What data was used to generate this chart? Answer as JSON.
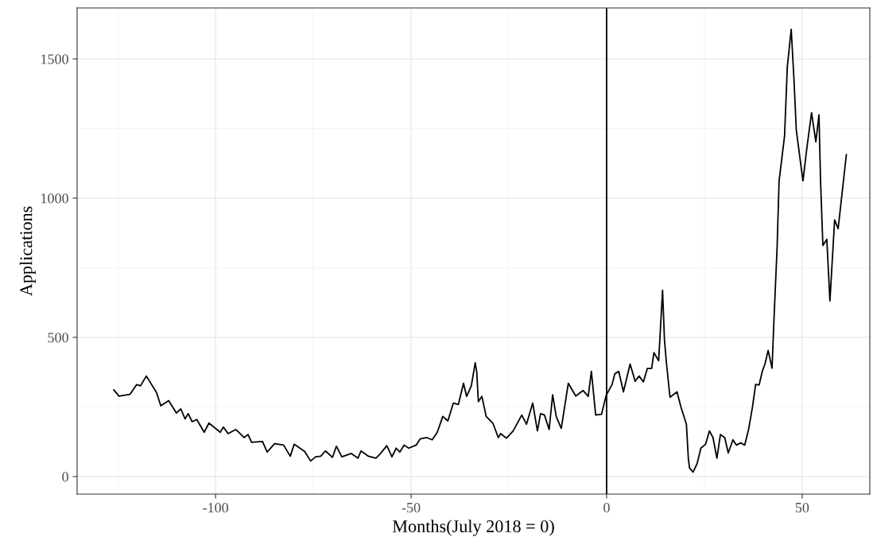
{
  "chart_data": {
    "type": "line",
    "xlabel": "Months(July 2018 = 0)",
    "ylabel": "Applications",
    "xlim": [
      -135.4,
      67.3
    ],
    "ylim": [
      -63,
      1683
    ],
    "xticks": [
      {
        "value": -125,
        "label": null
      },
      -100,
      {
        "value": -75,
        "label": null
      },
      -50,
      {
        "value": -25,
        "label": null
      },
      0,
      {
        "value": 25,
        "label": null
      },
      50
    ],
    "yticks": [
      0,
      {
        "value": 250,
        "label": null
      },
      500,
      {
        "value": 750,
        "label": null
      },
      1000,
      {
        "value": 1250,
        "label": null
      },
      1500
    ],
    "grid": true,
    "legend": false,
    "marker": "none",
    "line_style": "solid",
    "ref_lines": [
      {
        "axis": "x",
        "value": 0,
        "color": "#000000"
      }
    ],
    "series": [
      {
        "color": "#000000",
        "x": [
          -126,
          -124.7,
          -121.9,
          -120.2,
          -119.2,
          -117.7,
          -115.1,
          -114,
          -112,
          -110,
          -108.9,
          -107.8,
          -107,
          -106,
          -104.8,
          -102.9,
          -101.7,
          -98.8,
          -98,
          -96.8,
          -94.8,
          -92.7,
          -91.7,
          -90.8,
          -88,
          -86.8,
          -84.9,
          -82.6,
          -80.9,
          -79.9,
          -77.2,
          -75.7,
          -74.4,
          -73.1,
          -71.9,
          -70.1,
          -69.1,
          -67.7,
          -65.3,
          -63.6,
          -62.8,
          -60.9,
          -59,
          -57.8,
          -56.2,
          -54.9,
          -53.8,
          -52.9,
          -51.8,
          -50.6,
          -48.7,
          -47.7,
          -46,
          -44.6,
          -43.3,
          -41.9,
          -40.6,
          -39.2,
          -37.9,
          -36.6,
          -35.8,
          -34.6,
          -33.6,
          -33.2,
          -32.8,
          -31.9,
          -30.8,
          -29.1,
          -27.7,
          -27.1,
          -25.6,
          -23.9,
          -21.7,
          -20.5,
          -18.9,
          -17.7,
          -16.9,
          -15.9,
          -14.7,
          -13.8,
          -12.9,
          -11.6,
          -9.8,
          -7.9,
          -6,
          -4.7,
          -3.9,
          -2.8,
          -1.3,
          -0.1,
          1.4,
          2.1,
          3.1,
          4.3,
          6,
          7.3,
          8.3,
          9.4,
          10.4,
          11.5,
          12.1,
          13.3,
          13.8,
          14.3,
          14.8,
          15.3,
          16.2,
          18,
          19,
          20.4,
          20.9,
          21.2,
          22.1,
          23.1,
          24.1,
          25.3,
          26.3,
          27.2,
          28.2,
          29.1,
          30.2,
          31.1,
          32.3,
          33.2,
          34.3,
          35.3,
          36.3,
          37.3,
          38.1,
          39,
          39.8,
          40.5,
          41.3,
          42.3,
          42.8,
          43.6,
          44.1,
          45.5,
          46.2,
          47.2,
          47.9,
          48.5,
          50.2,
          51.2,
          52.4,
          53.5,
          54.3,
          54.7,
          55.3,
          56.3,
          57.1,
          58.3,
          59.2,
          61.3
        ],
        "values": [
          311,
          289,
          295,
          330,
          326,
          361,
          302,
          254,
          273,
          228,
          243,
          207,
          226,
          197,
          205,
          159,
          192,
          159,
          178,
          154,
          169,
          140,
          151,
          123,
          126,
          88,
          118,
          113,
          73,
          116,
          90,
          56,
          71,
          73,
          92,
          69,
          109,
          71,
          83,
          66,
          92,
          73,
          66,
          83,
          111,
          71,
          102,
          88,
          113,
          102,
          113,
          135,
          140,
          132,
          159,
          216,
          200,
          264,
          259,
          335,
          288,
          326,
          409,
          373,
          269,
          288,
          216,
          192,
          140,
          154,
          138,
          164,
          221,
          188,
          264,
          164,
          226,
          221,
          169,
          294,
          216,
          173,
          335,
          289,
          309,
          288,
          378,
          221,
          224,
          292,
          331,
          369,
          378,
          304,
          404,
          342,
          361,
          340,
          388,
          388,
          445,
          416,
          540,
          669,
          488,
          407,
          285,
          304,
          250,
          188,
          64,
          31,
          16,
          45,
          102,
          116,
          164,
          140,
          66,
          151,
          140,
          85,
          132,
          113,
          121,
          113,
          169,
          250,
          331,
          329,
          378,
          405,
          453,
          389,
          567,
          825,
          1062,
          1223,
          1471,
          1606,
          1428,
          1245,
          1062,
          1180,
          1307,
          1202,
          1299,
          1062,
          830,
          852,
          631,
          922,
          890,
          1156
        ]
      }
    ]
  }
}
